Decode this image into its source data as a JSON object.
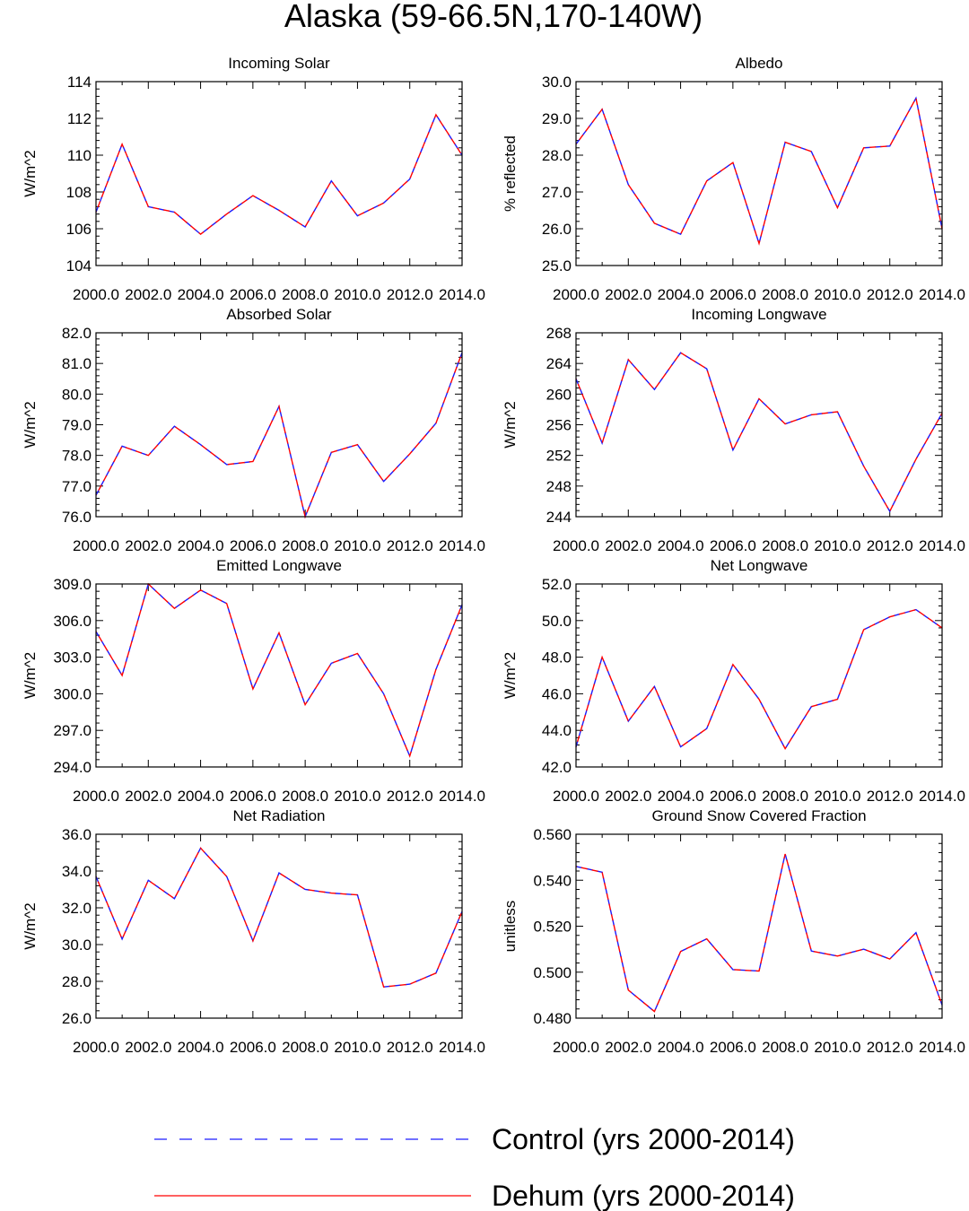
{
  "figure_title": "Alaska (59-66.5N,170-140W)",
  "legend": {
    "entries": [
      {
        "label": "Control (yrs 2000-2014)",
        "color": "#1a1aff",
        "style": "dashed"
      },
      {
        "label": "Dehum (yrs 2000-2014)",
        "color": "#ff0000",
        "style": "solid"
      }
    ]
  },
  "chart_data": [
    {
      "type": "line",
      "title": "Incoming Solar",
      "ylabel": "W/m^2",
      "x": [
        2000,
        2001,
        2002,
        2003,
        2004,
        2005,
        2006,
        2007,
        2008,
        2009,
        2010,
        2011,
        2012,
        2013,
        2014
      ],
      "xlim": [
        2000,
        2014
      ],
      "xticks": [
        "2000.0",
        "2002.0",
        "2004.0",
        "2006.0",
        "2008.0",
        "2010.0",
        "2012.0",
        "2014.0"
      ],
      "ylim": [
        104,
        114
      ],
      "yticks": [
        104,
        106,
        108,
        110,
        112,
        114
      ],
      "ydec": 0,
      "series": [
        {
          "name": "Control (yrs 2000-2014)",
          "values": [
            106.9,
            110.6,
            107.2,
            106.9,
            105.7,
            106.8,
            107.8,
            107.0,
            106.1,
            108.6,
            106.7,
            107.4,
            108.7,
            112.2,
            110.0
          ]
        },
        {
          "name": "Dehum (yrs 2000-2014)",
          "values": [
            106.9,
            110.6,
            107.2,
            106.9,
            105.7,
            106.8,
            107.8,
            107.0,
            106.1,
            108.6,
            106.7,
            107.4,
            108.7,
            112.2,
            110.0
          ]
        }
      ]
    },
    {
      "type": "line",
      "title": "Albedo",
      "ylabel": "% reflected",
      "x": [
        2000,
        2001,
        2002,
        2003,
        2004,
        2005,
        2006,
        2007,
        2008,
        2009,
        2010,
        2011,
        2012,
        2013,
        2014
      ],
      "xlim": [
        2000,
        2014
      ],
      "xticks": [
        "2000.0",
        "2002.0",
        "2004.0",
        "2006.0",
        "2008.0",
        "2010.0",
        "2012.0",
        "2014.0"
      ],
      "ylim": [
        25,
        30
      ],
      "yticks": [
        25,
        26,
        27,
        28,
        29,
        30
      ],
      "ydec": 1,
      "series": [
        {
          "name": "Control (yrs 2000-2014)",
          "values": [
            28.3,
            29.25,
            27.2,
            26.15,
            25.85,
            27.3,
            27.8,
            25.6,
            28.35,
            28.1,
            26.57,
            28.2,
            28.25,
            29.55,
            26.0
          ]
        },
        {
          "name": "Dehum (yrs 2000-2014)",
          "values": [
            28.3,
            29.25,
            27.2,
            26.15,
            25.85,
            27.3,
            27.8,
            25.6,
            28.35,
            28.1,
            26.57,
            28.2,
            28.25,
            29.55,
            26.0
          ]
        }
      ]
    },
    {
      "type": "line",
      "title": "Absorbed Solar",
      "ylabel": "W/m^2",
      "x": [
        2000,
        2001,
        2002,
        2003,
        2004,
        2005,
        2006,
        2007,
        2008,
        2009,
        2010,
        2011,
        2012,
        2013,
        2014
      ],
      "xlim": [
        2000,
        2014
      ],
      "xticks": [
        "2000.0",
        "2002.0",
        "2004.0",
        "2006.0",
        "2008.0",
        "2010.0",
        "2012.0",
        "2014.0"
      ],
      "ylim": [
        76,
        82
      ],
      "yticks": [
        76,
        77,
        78,
        79,
        80,
        81,
        82
      ],
      "ydec": 1,
      "series": [
        {
          "name": "Control (yrs 2000-2014)",
          "values": [
            76.7,
            78.3,
            78.0,
            78.95,
            78.35,
            77.7,
            77.8,
            79.6,
            76.0,
            78.1,
            78.35,
            77.15,
            78.05,
            79.05,
            81.35
          ]
        },
        {
          "name": "Dehum (yrs 2000-2014)",
          "values": [
            76.7,
            78.3,
            78.0,
            78.95,
            78.35,
            77.7,
            77.8,
            79.6,
            76.0,
            78.1,
            78.35,
            77.15,
            78.05,
            79.05,
            81.35
          ]
        }
      ]
    },
    {
      "type": "line",
      "title": "Incoming Longwave",
      "ylabel": "W/m^2",
      "x": [
        2000,
        2001,
        2002,
        2003,
        2004,
        2005,
        2006,
        2007,
        2008,
        2009,
        2010,
        2011,
        2012,
        2013,
        2014
      ],
      "xlim": [
        2000,
        2014
      ],
      "xticks": [
        "2000.0",
        "2002.0",
        "2004.0",
        "2006.0",
        "2008.0",
        "2010.0",
        "2012.0",
        "2014.0"
      ],
      "ylim": [
        244,
        268
      ],
      "yticks": [
        244,
        248,
        252,
        256,
        260,
        264,
        268
      ],
      "ydec": 0,
      "series": [
        {
          "name": "Control (yrs 2000-2014)",
          "values": [
            262.0,
            253.6,
            264.5,
            260.6,
            265.4,
            263.3,
            252.7,
            259.4,
            256.1,
            257.3,
            257.7,
            250.6,
            244.7,
            251.5,
            257.5
          ]
        },
        {
          "name": "Dehum (yrs 2000-2014)",
          "values": [
            262.0,
            253.6,
            264.5,
            260.6,
            265.4,
            263.3,
            252.7,
            259.4,
            256.1,
            257.3,
            257.7,
            250.6,
            244.7,
            251.5,
            257.5
          ]
        }
      ]
    },
    {
      "type": "line",
      "title": "Emitted Longwave",
      "ylabel": "W/m^2",
      "x": [
        2000,
        2001,
        2002,
        2003,
        2004,
        2005,
        2006,
        2007,
        2008,
        2009,
        2010,
        2011,
        2012,
        2013,
        2014
      ],
      "xlim": [
        2000,
        2014
      ],
      "xticks": [
        "2000.0",
        "2002.0",
        "2004.0",
        "2006.0",
        "2008.0",
        "2010.0",
        "2012.0",
        "2014.0"
      ],
      "ylim": [
        294,
        309
      ],
      "yticks": [
        294,
        297,
        300,
        303,
        306,
        309
      ],
      "ydec": 1,
      "series": [
        {
          "name": "Control (yrs 2000-2014)",
          "values": [
            305.1,
            301.5,
            309.0,
            307.0,
            308.5,
            307.4,
            300.4,
            305.0,
            299.1,
            302.5,
            303.3,
            300.0,
            294.9,
            302.0,
            307.3
          ]
        },
        {
          "name": "Dehum (yrs 2000-2014)",
          "values": [
            305.1,
            301.5,
            309.0,
            307.0,
            308.5,
            307.4,
            300.4,
            305.0,
            299.1,
            302.5,
            303.3,
            300.0,
            294.9,
            302.0,
            307.3
          ]
        }
      ]
    },
    {
      "type": "line",
      "title": "Net Longwave",
      "ylabel": "W/m^2",
      "x": [
        2000,
        2001,
        2002,
        2003,
        2004,
        2005,
        2006,
        2007,
        2008,
        2009,
        2010,
        2011,
        2012,
        2013,
        2014
      ],
      "xlim": [
        2000,
        2014
      ],
      "xticks": [
        "2000.0",
        "2002.0",
        "2004.0",
        "2006.0",
        "2008.0",
        "2010.0",
        "2012.0",
        "2014.0"
      ],
      "ylim": [
        42,
        52
      ],
      "yticks": [
        42,
        44,
        46,
        48,
        50,
        52
      ],
      "ydec": 1,
      "series": [
        {
          "name": "Control (yrs 2000-2014)",
          "values": [
            43.1,
            48.0,
            44.5,
            46.4,
            43.1,
            44.1,
            47.6,
            45.7,
            43.0,
            45.3,
            45.7,
            49.5,
            50.2,
            50.6,
            49.6
          ]
        },
        {
          "name": "Dehum (yrs 2000-2014)",
          "values": [
            43.1,
            48.0,
            44.5,
            46.4,
            43.1,
            44.1,
            47.6,
            45.7,
            43.0,
            45.3,
            45.7,
            49.5,
            50.2,
            50.6,
            49.6
          ]
        }
      ]
    },
    {
      "type": "line",
      "title": "Net Radiation",
      "ylabel": "W/m^2",
      "x": [
        2000,
        2001,
        2002,
        2003,
        2004,
        2005,
        2006,
        2007,
        2008,
        2009,
        2010,
        2011,
        2012,
        2013,
        2014
      ],
      "xlim": [
        2000,
        2014
      ],
      "xticks": [
        "2000.0",
        "2002.0",
        "2004.0",
        "2006.0",
        "2008.0",
        "2010.0",
        "2012.0",
        "2014.0"
      ],
      "ylim": [
        26,
        36
      ],
      "yticks": [
        26,
        28,
        30,
        32,
        34,
        36
      ],
      "ydec": 1,
      "series": [
        {
          "name": "Control (yrs 2000-2014)",
          "values": [
            33.7,
            30.3,
            33.5,
            32.5,
            35.25,
            33.7,
            30.2,
            33.9,
            33.0,
            32.8,
            32.7,
            27.7,
            27.85,
            28.45,
            31.8
          ]
        },
        {
          "name": "Dehum (yrs 2000-2014)",
          "values": [
            33.7,
            30.3,
            33.5,
            32.5,
            35.25,
            33.7,
            30.2,
            33.9,
            33.0,
            32.8,
            32.7,
            27.7,
            27.85,
            28.45,
            31.8
          ]
        }
      ]
    },
    {
      "type": "line",
      "title": "Ground Snow Covered Fraction",
      "ylabel": "unitless",
      "x": [
        2000,
        2001,
        2002,
        2003,
        2004,
        2005,
        2006,
        2007,
        2008,
        2009,
        2010,
        2011,
        2012,
        2013,
        2014
      ],
      "xlim": [
        2000,
        2014
      ],
      "xticks": [
        "2000.0",
        "2002.0",
        "2004.0",
        "2006.0",
        "2008.0",
        "2010.0",
        "2012.0",
        "2014.0"
      ],
      "ylim": [
        0.48,
        0.56
      ],
      "yticks": [
        0.48,
        0.5,
        0.52,
        0.54,
        0.56
      ],
      "ydec": 3,
      "series": [
        {
          "name": "Control (yrs 2000-2014)",
          "values": [
            0.546,
            0.5435,
            0.4922,
            0.4829,
            0.509,
            0.5145,
            0.5011,
            0.5005,
            0.5514,
            0.5092,
            0.507,
            0.51,
            0.5057,
            0.5172,
            0.4857
          ]
        },
        {
          "name": "Dehum (yrs 2000-2014)",
          "values": [
            0.546,
            0.5435,
            0.4922,
            0.4829,
            0.509,
            0.5145,
            0.5011,
            0.5005,
            0.5514,
            0.5092,
            0.507,
            0.51,
            0.5057,
            0.5172,
            0.4857
          ]
        }
      ]
    }
  ]
}
